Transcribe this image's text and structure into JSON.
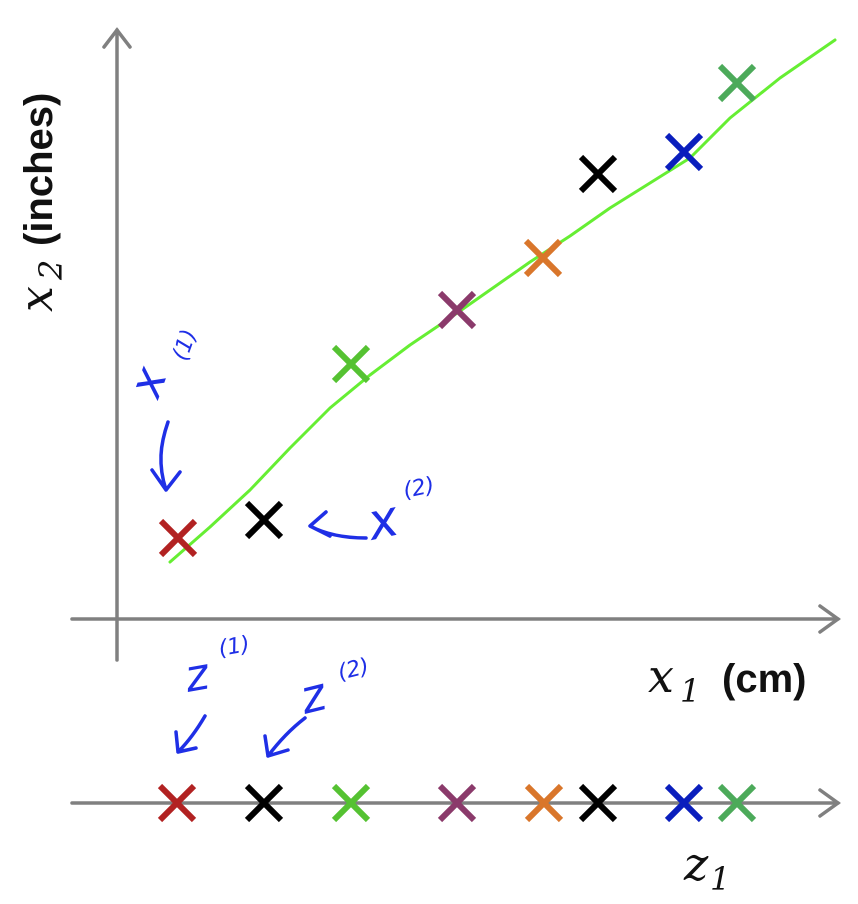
{
  "axes": {
    "x_var": "x",
    "x_sub": "1",
    "x_unit": "(cm)",
    "y_var": "x",
    "y_sub": "2",
    "y_unit": "(inches)",
    "z_var": "z",
    "z_sub": "1"
  },
  "annotations": {
    "x1_base": "x",
    "x1_sup": "(1)",
    "x2_base": "x",
    "x2_sup": "(2)",
    "z1_base": "z",
    "z1_sup": "(1)",
    "z2_base": "z",
    "z2_sup": "(2)"
  },
  "colors": {
    "axis": "#808080",
    "fit_line": "#66ee33",
    "pen": "#1f2fe6"
  },
  "points": [
    {
      "color": "#b22222"
    },
    {
      "color": "#000000"
    },
    {
      "color": "#55c232"
    },
    {
      "color": "#8b3a6b"
    },
    {
      "color": "#d9762b"
    },
    {
      "color": "#000000"
    },
    {
      "color": "#0a1ebd"
    },
    {
      "color": "#4caa5a"
    }
  ]
}
